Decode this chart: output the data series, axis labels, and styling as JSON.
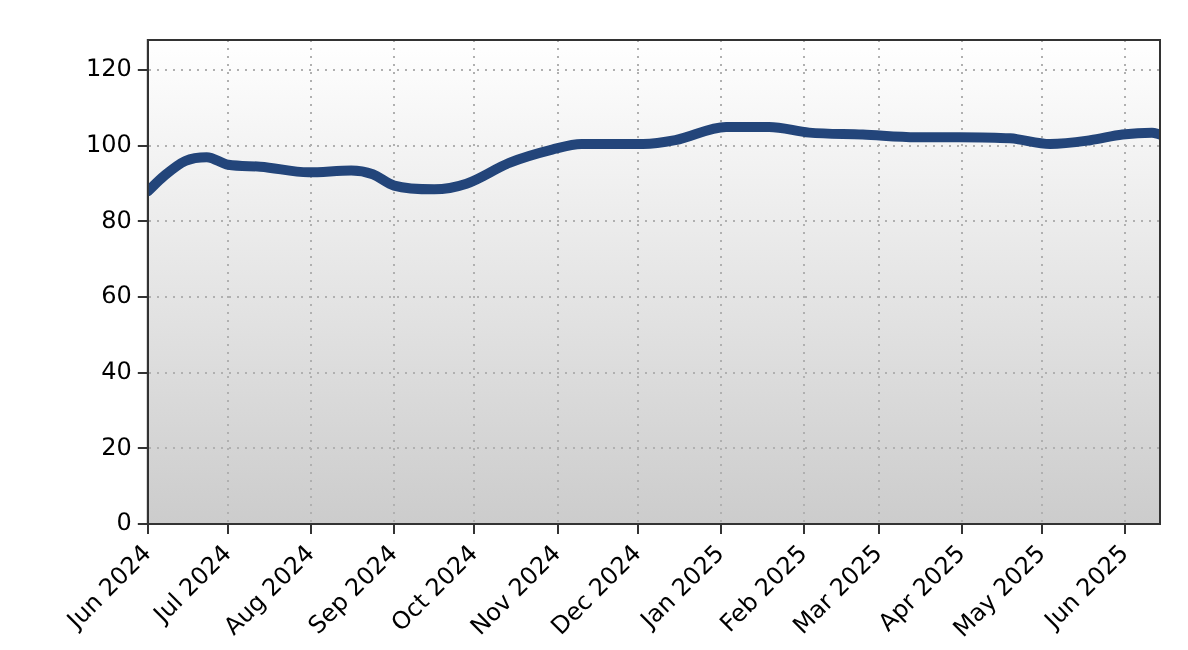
{
  "chart_data": {
    "type": "line",
    "x": [
      "2024-06-01",
      "2024-06-07",
      "2024-06-15",
      "2024-06-23",
      "2024-07-01",
      "2024-07-13",
      "2024-07-31",
      "2024-08-16",
      "2024-08-24",
      "2024-09-01",
      "2024-09-16",
      "2024-09-28",
      "2024-10-14",
      "2024-10-30",
      "2024-11-10",
      "2024-12-03",
      "2024-12-15",
      "2025-01-03",
      "2025-01-19",
      "2025-02-03",
      "2025-02-23",
      "2025-03-15",
      "2025-03-31",
      "2025-04-19",
      "2025-05-04",
      "2025-05-19",
      "2025-05-31",
      "2025-06-11",
      "2025-06-14"
    ],
    "series": [
      {
        "color": "#23457a",
        "values": [
          88,
          92,
          96,
          97,
          95,
          94.5,
          93,
          93.5,
          92.5,
          89.5,
          88.5,
          90,
          95.5,
          99,
          100.5,
          100.5,
          101.5,
          105,
          105,
          103.5,
          103,
          102.3,
          102.3,
          102,
          100.5,
          101.5,
          103,
          103.5,
          103
        ]
      }
    ],
    "xlim": [
      "2024-06-01",
      "2025-06-14"
    ],
    "xticks": [
      {
        "value": "2024-06-01",
        "label": "Jun 2024"
      },
      {
        "value": "2024-07-01",
        "label": "Jul 2024"
      },
      {
        "value": "2024-08-01",
        "label": "Aug 2024"
      },
      {
        "value": "2024-09-01",
        "label": "Sep 2024"
      },
      {
        "value": "2024-10-01",
        "label": "Oct 2024"
      },
      {
        "value": "2024-11-01",
        "label": "Nov 2024"
      },
      {
        "value": "2024-12-01",
        "label": "Dec 2024"
      },
      {
        "value": "2025-01-01",
        "label": "Jan 2025"
      },
      {
        "value": "2025-02-01",
        "label": "Feb 2025"
      },
      {
        "value": "2025-03-01",
        "label": "Mar 2025"
      },
      {
        "value": "2025-04-01",
        "label": "Apr 2025"
      },
      {
        "value": "2025-05-01",
        "label": "May 2025"
      },
      {
        "value": "2025-06-01",
        "label": "Jun 2025"
      }
    ],
    "ylim": [
      0,
      128
    ],
    "yticks": [
      0,
      20,
      40,
      60,
      80,
      100,
      120
    ],
    "grid": true,
    "legend": false,
    "marker": "none",
    "line_style": "solid"
  }
}
